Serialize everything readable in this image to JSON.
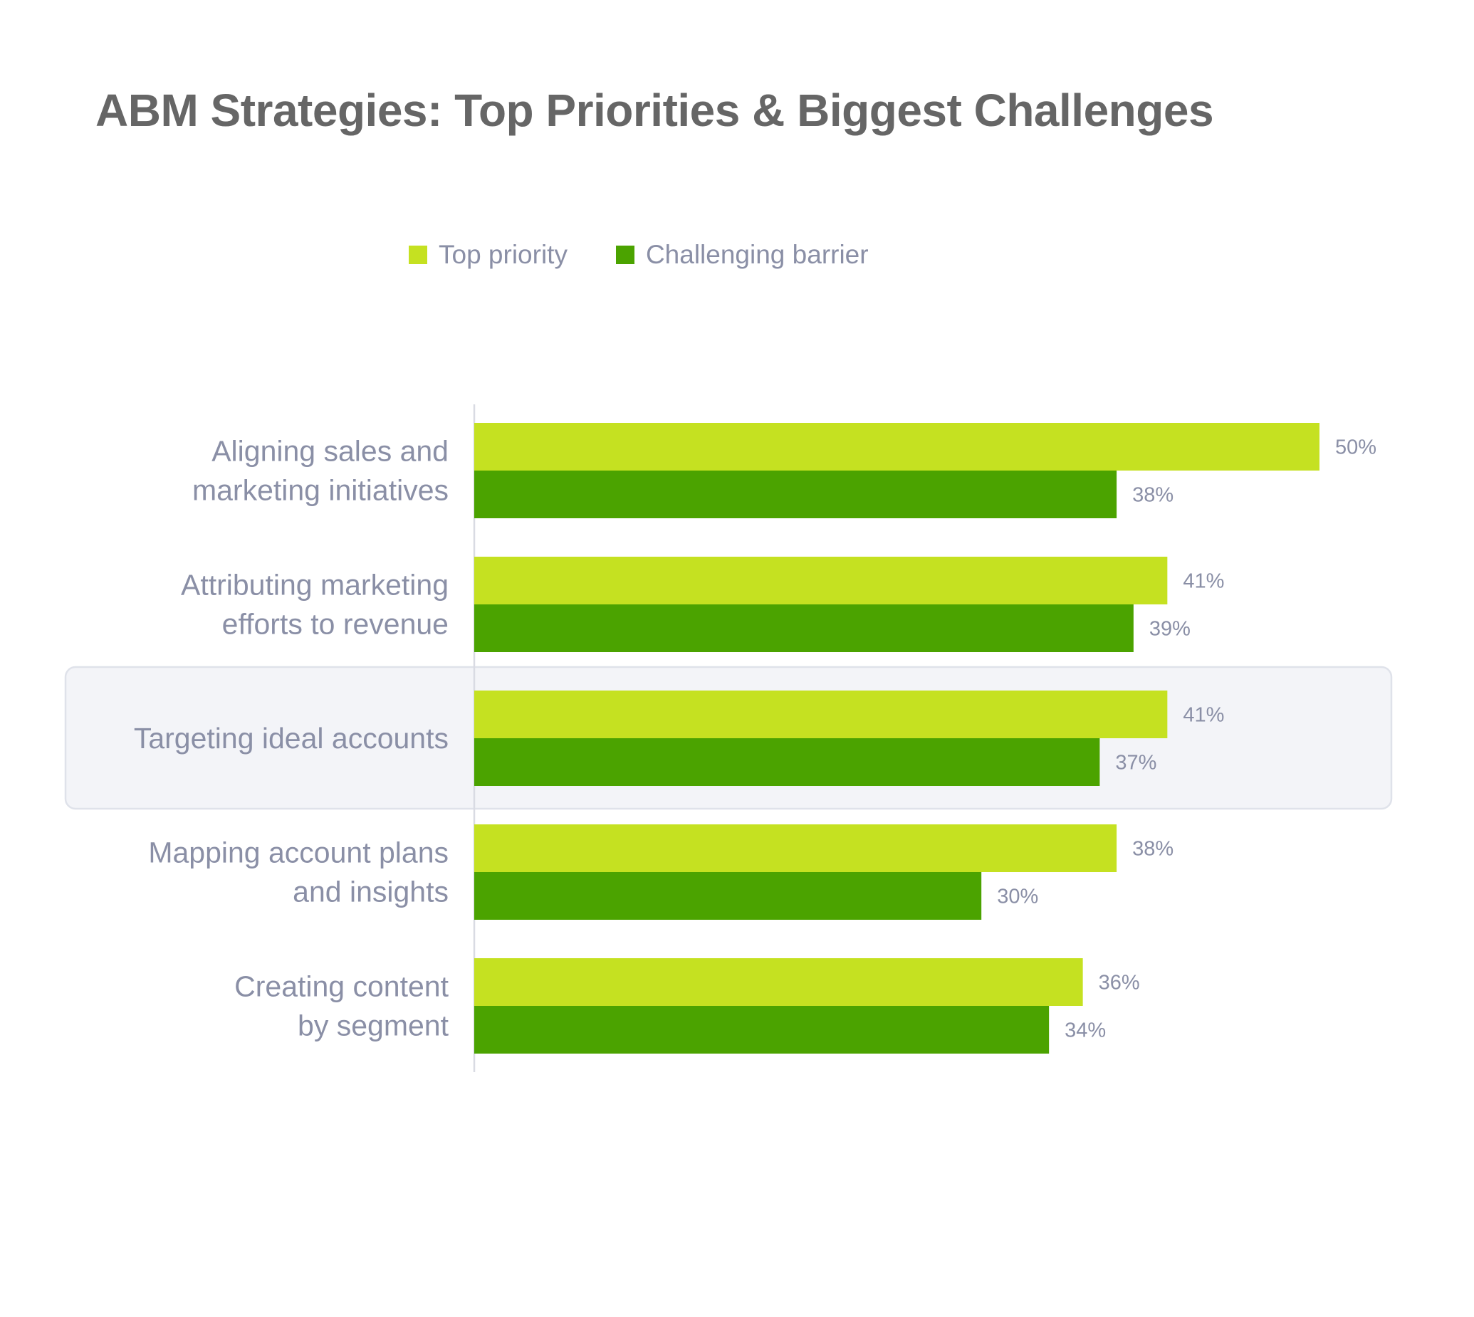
{
  "chart_data": {
    "type": "bar",
    "orientation": "horizontal",
    "title": "ABM Strategies: Top Priorities & Biggest Challenges",
    "categories": [
      [
        "Aligning sales and",
        "marketing initiatives"
      ],
      [
        "Attributing marketing",
        "efforts to revenue"
      ],
      [
        "Targeting ideal accounts"
      ],
      [
        "Mapping account plans",
        "and insights"
      ],
      [
        "Creating content",
        "by segment"
      ]
    ],
    "series": [
      {
        "name": "Top priority",
        "color": "#c5e121",
        "values": [
          50,
          41,
          41,
          38,
          36
        ],
        "labels": [
          "50%",
          "41%",
          "41%",
          "38%",
          "36%"
        ]
      },
      {
        "name": "Challenging barrier",
        "color": "#4ba300",
        "values": [
          38,
          39,
          37,
          30,
          34
        ],
        "labels": [
          "38%",
          "39%",
          "37%",
          "30%",
          "34%"
        ]
      }
    ],
    "highlighted_category": "Targeting ideal accounts",
    "xlim": [
      0,
      50
    ],
    "legend_position": "top",
    "grid": false
  }
}
